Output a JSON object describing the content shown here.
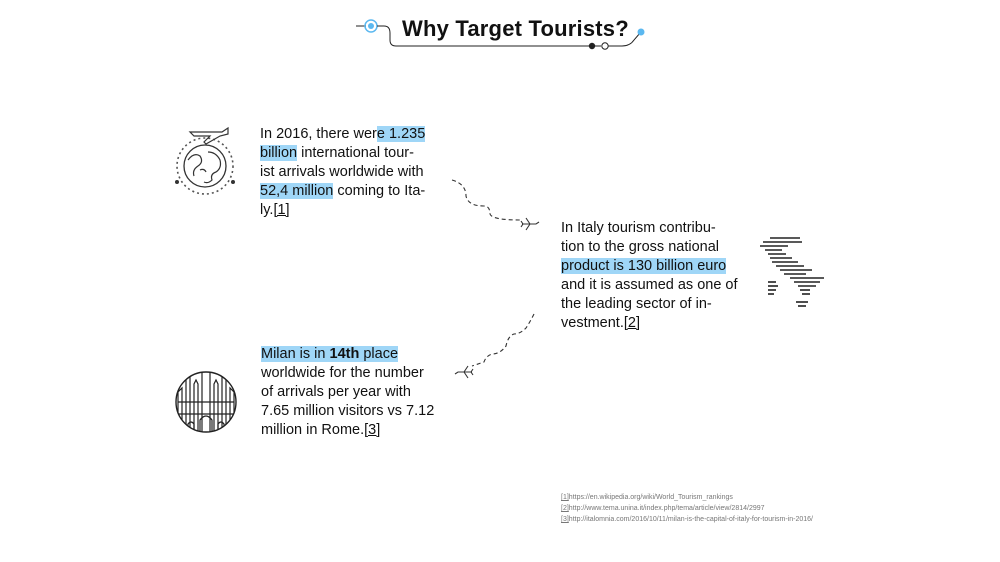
{
  "header": {
    "title": "Why Target Tourists?"
  },
  "blocks": {
    "world": {
      "l1_a": "In 2016, there wer",
      "l1_hl": "e 1.235",
      "l2_hl": "billion",
      "l2_b": " international tour-",
      "l3": "ist arrivals worldwide with",
      "l4_hl": "52,4 million",
      "l4_b": " coming to Ita-",
      "l5_a": "ly.",
      "l5_ref": "[1]"
    },
    "italy": {
      "l1": "In Italy tourism contribu-",
      "l2": "tion to the gross national",
      "l3_hl": "product is 130 billion euro",
      "l4": "and it is assumed as one of",
      "l5": "the leading sector of in-",
      "l6_a": "vestment.",
      "l6_ref": "[2]"
    },
    "milan": {
      "l1_a": "Milan is in ",
      "l1_b": "14th",
      "l1_c": " place ",
      "l2": "worldwide for the number",
      "l3": "of arrivals per year with",
      "l4": "7.65 million visitors vs  7.12",
      "l5_a": "million in Rome.",
      "l5_ref": "[3]"
    }
  },
  "footnotes": [
    {
      "num": "[1]",
      "text": "https://en.wikipedia.org/wiki/World_Tourism_rankings"
    },
    {
      "num": "[2]",
      "text": "http://www.tema.unina.it/index.php/tema/article/view/2814/2997"
    },
    {
      "num": "[3]",
      "text": "http://italomnia.com/2016/10/11/milan-is-the-capital-of-italy-for-tourism-in-2016/"
    }
  ],
  "colors": {
    "highlight": "#9fd6f7",
    "accent": "#5bb8f0",
    "text": "#111111"
  },
  "icons": [
    "globe-plane-icon",
    "italy-map-icon",
    "milan-cathedral-icon",
    "plane-icon"
  ]
}
